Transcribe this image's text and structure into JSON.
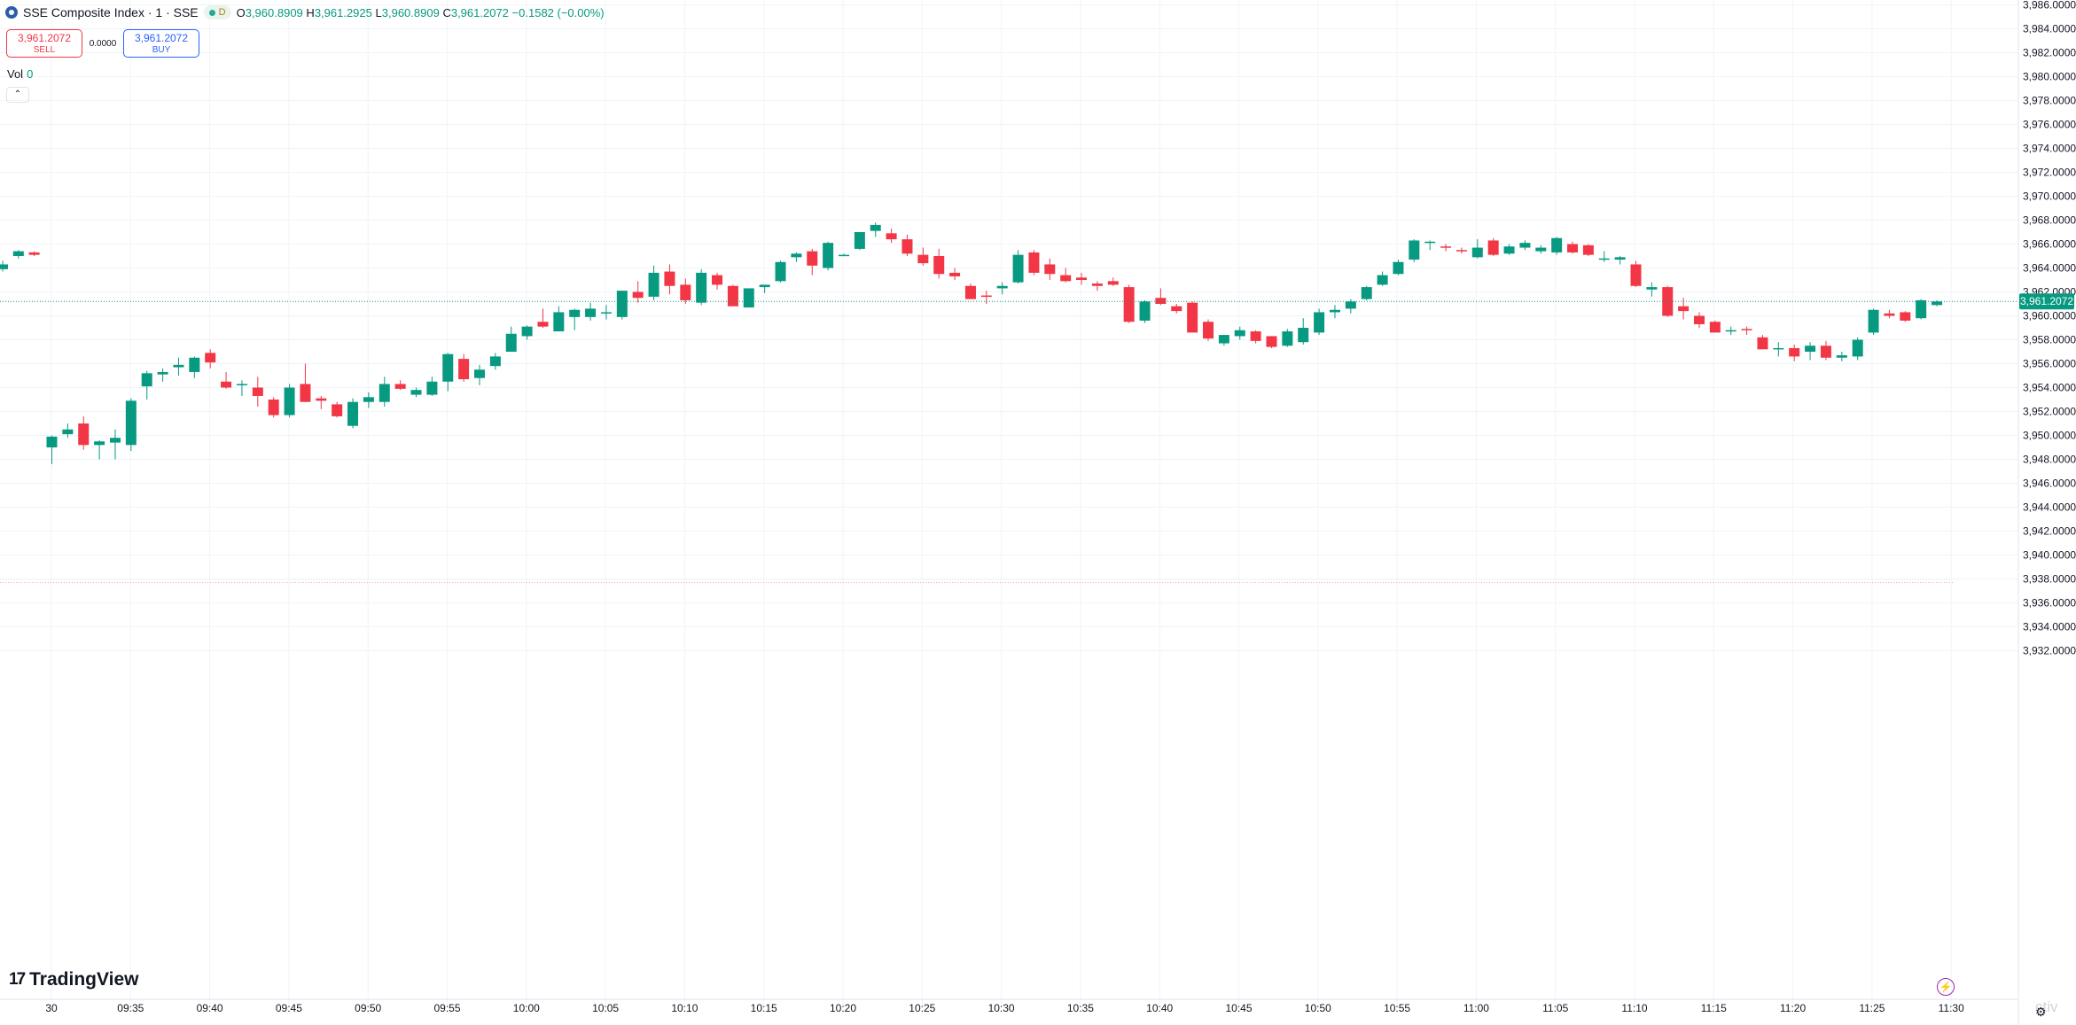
{
  "header": {
    "symbol": "SSE Composite Index · 1 · SSE",
    "badge": "D",
    "o_label": "O",
    "o_value": "3,960.8909",
    "h_label": "H",
    "h_value": "3,961.2925",
    "l_label": "L",
    "l_value": "3,960.8909",
    "c_label": "C",
    "c_value": "3,961.2072",
    "change": "−0.1582 (−0.00%)"
  },
  "trade": {
    "sell_price": "3,961.2072",
    "sell_label": "SELL",
    "spread": "0.0000",
    "buy_price": "3,961.2072",
    "buy_label": "BUY"
  },
  "volume": {
    "label": "Vol",
    "value": "0"
  },
  "collapse_glyph": "⌃",
  "branding": {
    "name": "TradingView"
  },
  "watermark": "ctiv",
  "colors": {
    "up": "#089981",
    "down": "#f23645",
    "grid": "#f0f3fa",
    "axis_text": "#131722"
  },
  "chart_data": {
    "type": "candlestick",
    "yticks": [
      "3,986.0000",
      "3,984.0000",
      "3,982.0000",
      "3,980.0000",
      "3,978.0000",
      "3,976.0000",
      "3,974.0000",
      "3,972.0000",
      "3,970.0000",
      "3,968.0000",
      "3,966.0000",
      "3,964.0000",
      "3,962.0000",
      "3,960.0000",
      "3,958.0000",
      "3,956.0000",
      "3,954.0000",
      "3,952.0000",
      "3,950.0000",
      "3,948.0000",
      "3,946.0000",
      "3,944.0000",
      "3,942.0000",
      "3,940.0000",
      "3,938.0000",
      "3,936.0000",
      "3,934.0000",
      "3,932.0000"
    ],
    "ylim": [
      3931.0,
      3986.5
    ],
    "xticks": [
      "30",
      "09:35",
      "09:40",
      "09:45",
      "09:50",
      "09:55",
      "10:00",
      "10:05",
      "10:10",
      "10:15",
      "10:20",
      "10:25",
      "10:30",
      "10:35",
      "10:40",
      "10:45",
      "10:50",
      "10:55",
      "11:00",
      "11:05",
      "11:10",
      "11:15",
      "11:20",
      "11:25",
      "11:30"
    ],
    "last_price": 3961.2072,
    "last_price_label": "3,961.2072",
    "reference_price": 3937.7,
    "candles": [
      [
        3963.9,
        3964.6,
        3963.7,
        3964.3
      ],
      [
        3965.0,
        3965.5,
        3964.8,
        3965.4
      ],
      [
        3965.3,
        3965.4,
        3965.0,
        3965.1
      ],
      [
        3949.0,
        3950.0,
        3947.6,
        3949.9
      ],
      [
        3950.1,
        3951.0,
        3949.8,
        3950.5
      ],
      [
        3951.0,
        3951.6,
        3948.8,
        3949.2
      ],
      [
        3949.2,
        3949.6,
        3948.0,
        3949.5
      ],
      [
        3949.4,
        3950.5,
        3948.0,
        3949.8
      ],
      [
        3949.2,
        3953.1,
        3948.7,
        3952.9
      ],
      [
        3954.1,
        3955.4,
        3953.0,
        3955.2
      ],
      [
        3955.1,
        3955.6,
        3954.5,
        3955.3
      ],
      [
        3955.7,
        3956.5,
        3955.0,
        3955.9
      ],
      [
        3955.3,
        3956.6,
        3954.8,
        3956.5
      ],
      [
        3956.9,
        3957.2,
        3955.6,
        3956.1
      ],
      [
        3954.5,
        3955.3,
        3953.9,
        3954.0
      ],
      [
        3954.2,
        3954.6,
        3953.3,
        3954.3
      ],
      [
        3954.0,
        3954.9,
        3952.4,
        3953.3
      ],
      [
        3953.0,
        3953.2,
        3951.5,
        3951.7
      ],
      [
        3951.7,
        3954.3,
        3951.5,
        3954.0
      ],
      [
        3954.3,
        3956.0,
        3952.8,
        3952.8
      ],
      [
        3953.1,
        3953.3,
        3952.2,
        3952.9
      ],
      [
        3952.6,
        3952.8,
        3951.5,
        3951.6
      ],
      [
        3950.8,
        3953.1,
        3950.6,
        3952.8
      ],
      [
        3952.8,
        3953.6,
        3952.3,
        3953.2
      ],
      [
        3952.8,
        3954.9,
        3952.4,
        3954.3
      ],
      [
        3954.3,
        3954.6,
        3953.8,
        3953.9
      ],
      [
        3953.4,
        3954.0,
        3953.2,
        3953.8
      ],
      [
        3953.4,
        3954.9,
        3953.3,
        3954.5
      ],
      [
        3954.5,
        3956.9,
        3953.7,
        3956.8
      ],
      [
        3956.4,
        3956.8,
        3954.5,
        3954.7
      ],
      [
        3954.8,
        3955.9,
        3954.2,
        3955.5
      ],
      [
        3955.8,
        3956.9,
        3955.5,
        3956.6
      ],
      [
        3957.0,
        3959.1,
        3957.0,
        3958.5
      ],
      [
        3958.3,
        3959.2,
        3958.0,
        3959.1
      ],
      [
        3959.5,
        3960.6,
        3959.0,
        3959.1
      ],
      [
        3958.7,
        3960.8,
        3958.7,
        3960.3
      ],
      [
        3959.9,
        3960.6,
        3958.8,
        3960.5
      ],
      [
        3959.9,
        3961.1,
        3959.6,
        3960.6
      ],
      [
        3960.3,
        3960.9,
        3959.7,
        3960.3
      ],
      [
        3959.9,
        3962.1,
        3959.7,
        3962.1
      ],
      [
        3962.0,
        3962.9,
        3961.1,
        3961.5
      ],
      [
        3961.6,
        3964.2,
        3961.3,
        3963.6
      ],
      [
        3963.7,
        3964.3,
        3961.8,
        3962.5
      ],
      [
        3962.6,
        3963.1,
        3961.0,
        3961.3
      ],
      [
        3961.1,
        3963.9,
        3960.9,
        3963.6
      ],
      [
        3963.4,
        3963.6,
        3962.2,
        3962.6
      ],
      [
        3962.5,
        3962.6,
        3960.8,
        3960.8
      ],
      [
        3960.7,
        3962.3,
        3960.7,
        3962.3
      ],
      [
        3962.4,
        3962.6,
        3961.9,
        3962.6
      ],
      [
        3962.9,
        3964.6,
        3962.8,
        3964.5
      ],
      [
        3964.9,
        3965.3,
        3964.5,
        3965.2
      ],
      [
        3965.4,
        3965.6,
        3963.4,
        3964.2
      ],
      [
        3964.0,
        3966.2,
        3963.8,
        3966.1
      ],
      [
        3965.1,
        3965.2,
        3965.0,
        3965.1
      ],
      [
        3965.6,
        3967.0,
        3965.5,
        3967.0
      ],
      [
        3967.1,
        3967.8,
        3966.6,
        3967.6
      ],
      [
        3966.9,
        3967.3,
        3966.1,
        3966.4
      ],
      [
        3966.4,
        3966.8,
        3965.0,
        3965.2
      ],
      [
        3965.1,
        3965.7,
        3964.2,
        3964.4
      ],
      [
        3965.0,
        3965.6,
        3963.1,
        3963.5
      ],
      [
        3963.6,
        3964.0,
        3963.0,
        3963.3
      ],
      [
        3962.5,
        3962.7,
        3961.4,
        3961.4
      ],
      [
        3961.7,
        3962.1,
        3961.0,
        3961.6
      ],
      [
        3962.3,
        3962.8,
        3961.8,
        3962.5
      ],
      [
        3962.8,
        3965.5,
        3962.7,
        3965.1
      ],
      [
        3965.3,
        3965.5,
        3963.4,
        3963.6
      ],
      [
        3964.3,
        3964.8,
        3963.0,
        3963.5
      ],
      [
        3963.4,
        3964.0,
        3962.8,
        3962.9
      ],
      [
        3963.2,
        3963.6,
        3962.6,
        3963.0
      ],
      [
        3962.7,
        3962.9,
        3962.1,
        3962.5
      ],
      [
        3962.9,
        3963.2,
        3962.5,
        3962.6
      ],
      [
        3962.4,
        3962.6,
        3959.4,
        3959.5
      ],
      [
        3959.6,
        3961.3,
        3959.4,
        3961.2
      ],
      [
        3961.5,
        3962.3,
        3960.9,
        3961.0
      ],
      [
        3960.8,
        3961.0,
        3960.2,
        3960.4
      ],
      [
        3961.1,
        3961.2,
        3958.6,
        3958.6
      ],
      [
        3959.5,
        3959.7,
        3957.9,
        3958.1
      ],
      [
        3957.7,
        3958.4,
        3957.5,
        3958.4
      ],
      [
        3958.3,
        3959.1,
        3958.0,
        3958.8
      ],
      [
        3958.7,
        3958.8,
        3957.7,
        3957.9
      ],
      [
        3958.3,
        3958.3,
        3957.3,
        3957.4
      ],
      [
        3957.5,
        3958.9,
        3957.4,
        3958.7
      ],
      [
        3957.8,
        3959.8,
        3957.6,
        3959.0
      ],
      [
        3958.6,
        3960.6,
        3958.4,
        3960.3
      ],
      [
        3960.3,
        3960.9,
        3959.8,
        3960.5
      ],
      [
        3960.6,
        3961.4,
        3960.2,
        3961.2
      ],
      [
        3961.4,
        3962.5,
        3961.3,
        3962.4
      ],
      [
        3962.6,
        3963.7,
        3962.5,
        3963.4
      ],
      [
        3963.5,
        3964.7,
        3963.4,
        3964.5
      ],
      [
        3964.7,
        3966.4,
        3964.5,
        3966.3
      ],
      [
        3966.2,
        3966.3,
        3965.5,
        3966.2
      ],
      [
        3965.8,
        3966.0,
        3965.4,
        3965.7
      ],
      [
        3965.5,
        3965.7,
        3965.2,
        3965.4
      ],
      [
        3964.9,
        3966.4,
        3964.8,
        3965.7
      ],
      [
        3966.3,
        3966.5,
        3965.0,
        3965.1
      ],
      [
        3965.2,
        3966.0,
        3965.1,
        3965.8
      ],
      [
        3965.7,
        3966.3,
        3965.5,
        3966.1
      ],
      [
        3965.4,
        3965.9,
        3965.2,
        3965.7
      ],
      [
        3965.3,
        3966.6,
        3965.1,
        3966.5
      ],
      [
        3966.0,
        3966.2,
        3965.2,
        3965.3
      ],
      [
        3965.9,
        3966.0,
        3965.0,
        3965.1
      ],
      [
        3964.8,
        3965.4,
        3964.5,
        3964.8
      ],
      [
        3964.7,
        3965.0,
        3964.3,
        3964.9
      ],
      [
        3964.3,
        3964.6,
        3962.4,
        3962.5
      ],
      [
        3962.2,
        3962.8,
        3961.6,
        3962.4
      ],
      [
        3962.4,
        3962.5,
        3959.9,
        3960.0
      ],
      [
        3960.8,
        3961.5,
        3959.7,
        3960.4
      ],
      [
        3960.0,
        3960.3,
        3959.0,
        3959.3
      ],
      [
        3959.5,
        3959.6,
        3958.6,
        3958.6
      ],
      [
        3958.7,
        3959.1,
        3958.4,
        3958.8
      ],
      [
        3958.9,
        3959.1,
        3958.4,
        3958.8
      ],
      [
        3958.2,
        3958.4,
        3957.2,
        3957.2
      ],
      [
        3957.2,
        3957.8,
        3956.6,
        3957.3
      ],
      [
        3957.3,
        3957.6,
        3956.2,
        3956.6
      ],
      [
        3957.0,
        3957.8,
        3956.3,
        3957.5
      ],
      [
        3957.5,
        3957.9,
        3956.3,
        3956.5
      ],
      [
        3956.5,
        3957.0,
        3956.2,
        3956.7
      ],
      [
        3956.6,
        3958.2,
        3956.3,
        3958.0
      ],
      [
        3958.6,
        3960.6,
        3958.4,
        3960.5
      ],
      [
        3960.2,
        3960.5,
        3959.8,
        3960.0
      ],
      [
        3960.3,
        3960.4,
        3959.5,
        3959.6
      ],
      [
        3959.8,
        3961.4,
        3959.7,
        3961.3
      ],
      [
        3960.9,
        3961.3,
        3960.8,
        3961.2
      ]
    ]
  }
}
